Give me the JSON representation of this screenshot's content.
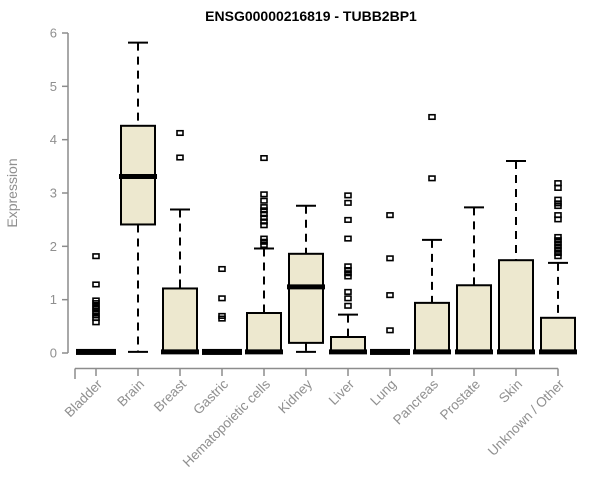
{
  "page": {
    "title": "ENSG00000216819 - TUBB2BP1"
  },
  "chart_data": {
    "type": "boxplot",
    "title": "ENSG00000216819 - TUBB2BP1",
    "ylabel": "Expression",
    "xlabel": "",
    "ylim": [
      0,
      6
    ],
    "yticks": [
      0,
      1,
      2,
      3,
      4,
      5,
      6
    ],
    "grid": false,
    "legend": "none",
    "categories": [
      "Bladder",
      "Brain",
      "Breast",
      "Gastric",
      "Hematopoietic cells",
      "Kidney",
      "Liver",
      "Lung",
      "Pancreas",
      "Prostate",
      "Skin",
      "Unknown / Other"
    ],
    "series": [
      {
        "label": "Bladder",
        "whisker_low": 0,
        "q1": 0,
        "median": 0.02,
        "q3": 0.02,
        "whisker_high": 0.02,
        "outliers": [
          1.82,
          1.29,
          0.99,
          0.94,
          0.88,
          0.83,
          0.77,
          0.71,
          0.66,
          0.58
        ]
      },
      {
        "label": "Brain",
        "whisker_low": 0.02,
        "q1": 2.41,
        "median": 3.31,
        "q3": 4.26,
        "whisker_high": 5.82,
        "outliers": []
      },
      {
        "label": "Breast",
        "whisker_low": 0,
        "q1": 0,
        "median": 0.02,
        "q3": 1.21,
        "whisker_high": 2.69,
        "outliers": [
          4.13,
          3.67
        ]
      },
      {
        "label": "Gastric",
        "whisker_low": 0,
        "q1": 0,
        "median": 0.02,
        "q3": 0.02,
        "whisker_high": 0.02,
        "outliers": [
          1.58,
          1.03,
          0.7,
          0.65
        ]
      },
      {
        "label": "Hematopoietic cells",
        "whisker_low": 0,
        "q1": 0,
        "median": 0.02,
        "q3": 0.75,
        "whisker_high": 1.96,
        "outliers": [
          3.66,
          2.98,
          2.86,
          2.74,
          2.68,
          2.61,
          2.54,
          2.47,
          2.4,
          2.15,
          2.09,
          2.03
        ]
      },
      {
        "label": "Kidney",
        "whisker_low": 0.02,
        "q1": 0.19,
        "median": 1.24,
        "q3": 1.86,
        "whisker_high": 2.76,
        "outliers": []
      },
      {
        "label": "Liver",
        "whisker_low": 0,
        "q1": 0,
        "median": 0.02,
        "q3": 0.3,
        "whisker_high": 0.72,
        "outliers": [
          2.96,
          2.82,
          2.5,
          2.15,
          1.63,
          1.56,
          1.5,
          1.44,
          1.15,
          1.03,
          0.89
        ]
      },
      {
        "label": "Lung",
        "whisker_low": 0,
        "q1": 0,
        "median": 0.02,
        "q3": 0.02,
        "whisker_high": 0.02,
        "outliers": [
          2.59,
          1.78,
          1.09,
          0.43
        ]
      },
      {
        "label": "Pancreas",
        "whisker_low": 0,
        "q1": 0,
        "median": 0.02,
        "q3": 0.94,
        "whisker_high": 2.12,
        "outliers": [
          4.43,
          3.28
        ]
      },
      {
        "label": "Prostate",
        "whisker_low": 0,
        "q1": 0,
        "median": 0.02,
        "q3": 1.27,
        "whisker_high": 2.73,
        "outliers": []
      },
      {
        "label": "Skin",
        "whisker_low": 0,
        "q1": 0,
        "median": 0.02,
        "q3": 1.74,
        "whisker_high": 3.6,
        "outliers": []
      },
      {
        "label": "Unknown / Other",
        "whisker_low": 0,
        "q1": 0,
        "median": 0.02,
        "q3": 0.66,
        "whisker_high": 1.69,
        "outliers": [
          3.19,
          3.1,
          2.88,
          2.81,
          2.76,
          2.59,
          2.51,
          2.18,
          2.12,
          2.06,
          2.0,
          1.94,
          1.88,
          1.82
        ]
      }
    ],
    "colors": {
      "box_fill": "#ede8cf",
      "box_stroke": "#000000",
      "median": "#000000",
      "whisker": "#000000",
      "outlier": "#000000",
      "axis": "#8c8c8c",
      "axis_text": "#8f8f8f",
      "title_text": "#000000",
      "background": "#ffffff"
    }
  }
}
